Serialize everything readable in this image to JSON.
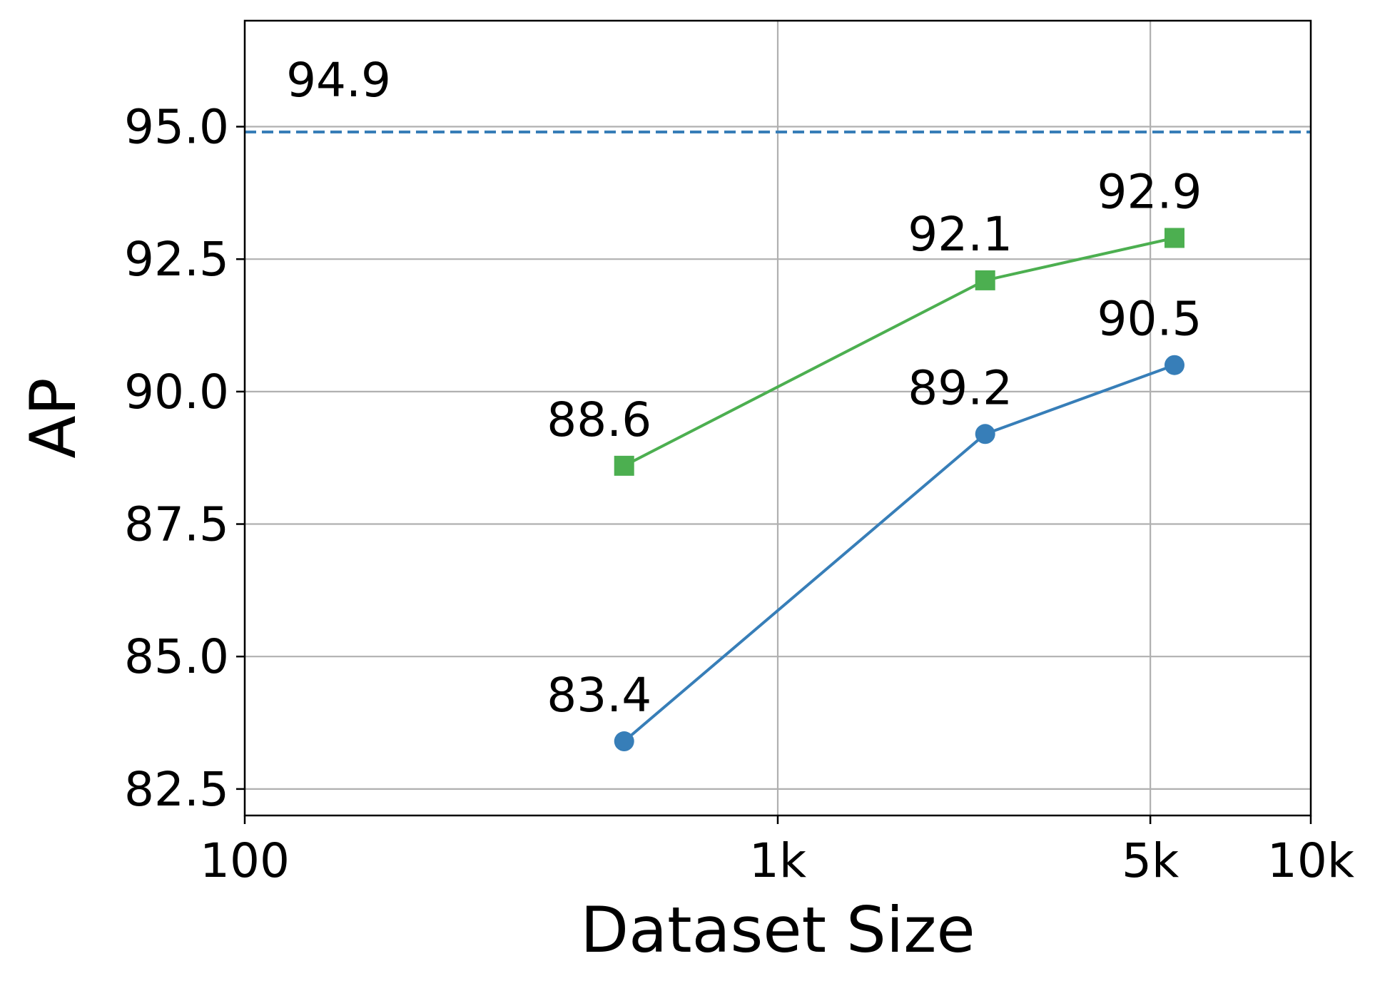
{
  "chart_data": {
    "type": "line",
    "title": "",
    "xlabel": "Dataset Size",
    "ylabel": "AP",
    "x_scale": "log",
    "xlim": [
      100,
      10000
    ],
    "ylim": [
      82,
      97
    ],
    "x_ticks": [
      {
        "value": 100,
        "label": "100"
      },
      {
        "value": 1000,
        "label": "1k"
      },
      {
        "value": 5000,
        "label": "5k"
      },
      {
        "value": 10000,
        "label": "10k"
      }
    ],
    "y_ticks": [
      {
        "value": 82.5,
        "label": "82.5"
      },
      {
        "value": 85.0,
        "label": "85.0"
      },
      {
        "value": 87.5,
        "label": "87.5"
      },
      {
        "value": 90.0,
        "label": "90.0"
      },
      {
        "value": 92.5,
        "label": "92.5"
      },
      {
        "value": 95.0,
        "label": "95.0"
      }
    ],
    "grid": true,
    "legend": "none",
    "series": [
      {
        "color": "#4caf50",
        "marker": "square",
        "points": [
          {
            "x": 515,
            "y": 88.6,
            "label": "88.6"
          },
          {
            "x": 2450,
            "y": 92.1,
            "label": "92.1"
          },
          {
            "x": 5550,
            "y": 92.9,
            "label": "92.9"
          }
        ]
      },
      {
        "color": "#377eb8",
        "marker": "circle",
        "points": [
          {
            "x": 515,
            "y": 83.4,
            "label": "83.4"
          },
          {
            "x": 2450,
            "y": 89.2,
            "label": "89.2"
          },
          {
            "x": 5550,
            "y": 90.5,
            "label": "90.5"
          }
        ]
      }
    ],
    "reference_line": {
      "y": 94.9,
      "label": "94.9",
      "label_x": 150,
      "color": "#377eb8",
      "style": "dashed"
    }
  }
}
